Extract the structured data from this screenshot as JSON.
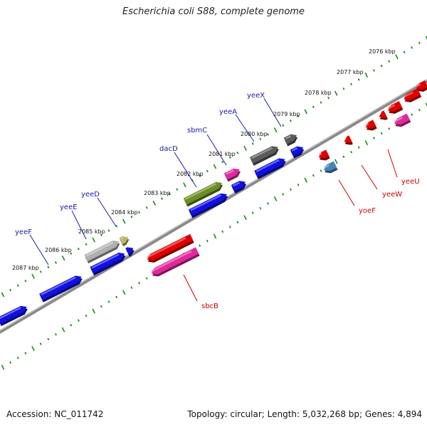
{
  "title": "Escherichia coli S88, complete genome",
  "footer": {
    "accession": "Accession: NC_011742",
    "summary": "Topology: circular; Length: 5,032,268 bp; Genes: 4,894"
  },
  "colors": {
    "forward_label": "#1a1aa8",
    "reverse_label": "#cc0000",
    "scale_tick": "#1a8a1a",
    "backbone": "#8a8a8a"
  },
  "scale": {
    "unit": "kbp",
    "labels": [
      "2076 kbp",
      "2077 kbp",
      "2078 kbp",
      "2079 kbp",
      "2080 kbp",
      "2081 kbp",
      "2082 kbp",
      "2083 kbp",
      "2084 kbp",
      "2085 kbp",
      "2086 kbp",
      "2087 kbp"
    ]
  },
  "genes": [
    {
      "name": "yeeX",
      "strand": "forward",
      "color": "#5a5a5a"
    },
    {
      "name": "yeeA",
      "strand": "forward",
      "color": "#5a5a5a"
    },
    {
      "name": "sbmC",
      "strand": "forward",
      "color": "#e0299a"
    },
    {
      "name": "dacD",
      "strand": "forward",
      "color": "#6b8e23"
    },
    {
      "name": "yeeD",
      "strand": "forward",
      "color": "#bdb76b"
    },
    {
      "name": "yeeE",
      "strand": "forward",
      "color": "#b0b0b0"
    },
    {
      "name": "yeeF",
      "strand": "forward",
      "color": "#1010e0"
    },
    {
      "name": "yoeF",
      "strand": "reverse",
      "color": "#4682b4"
    },
    {
      "name": "yeeW",
      "strand": "reverse",
      "color": "#e00000"
    },
    {
      "name": "yeeU",
      "strand": "reverse",
      "color": "#e00000"
    },
    {
      "name": "sbcB",
      "strand": "reverse",
      "color": "#e0299a"
    }
  ]
}
